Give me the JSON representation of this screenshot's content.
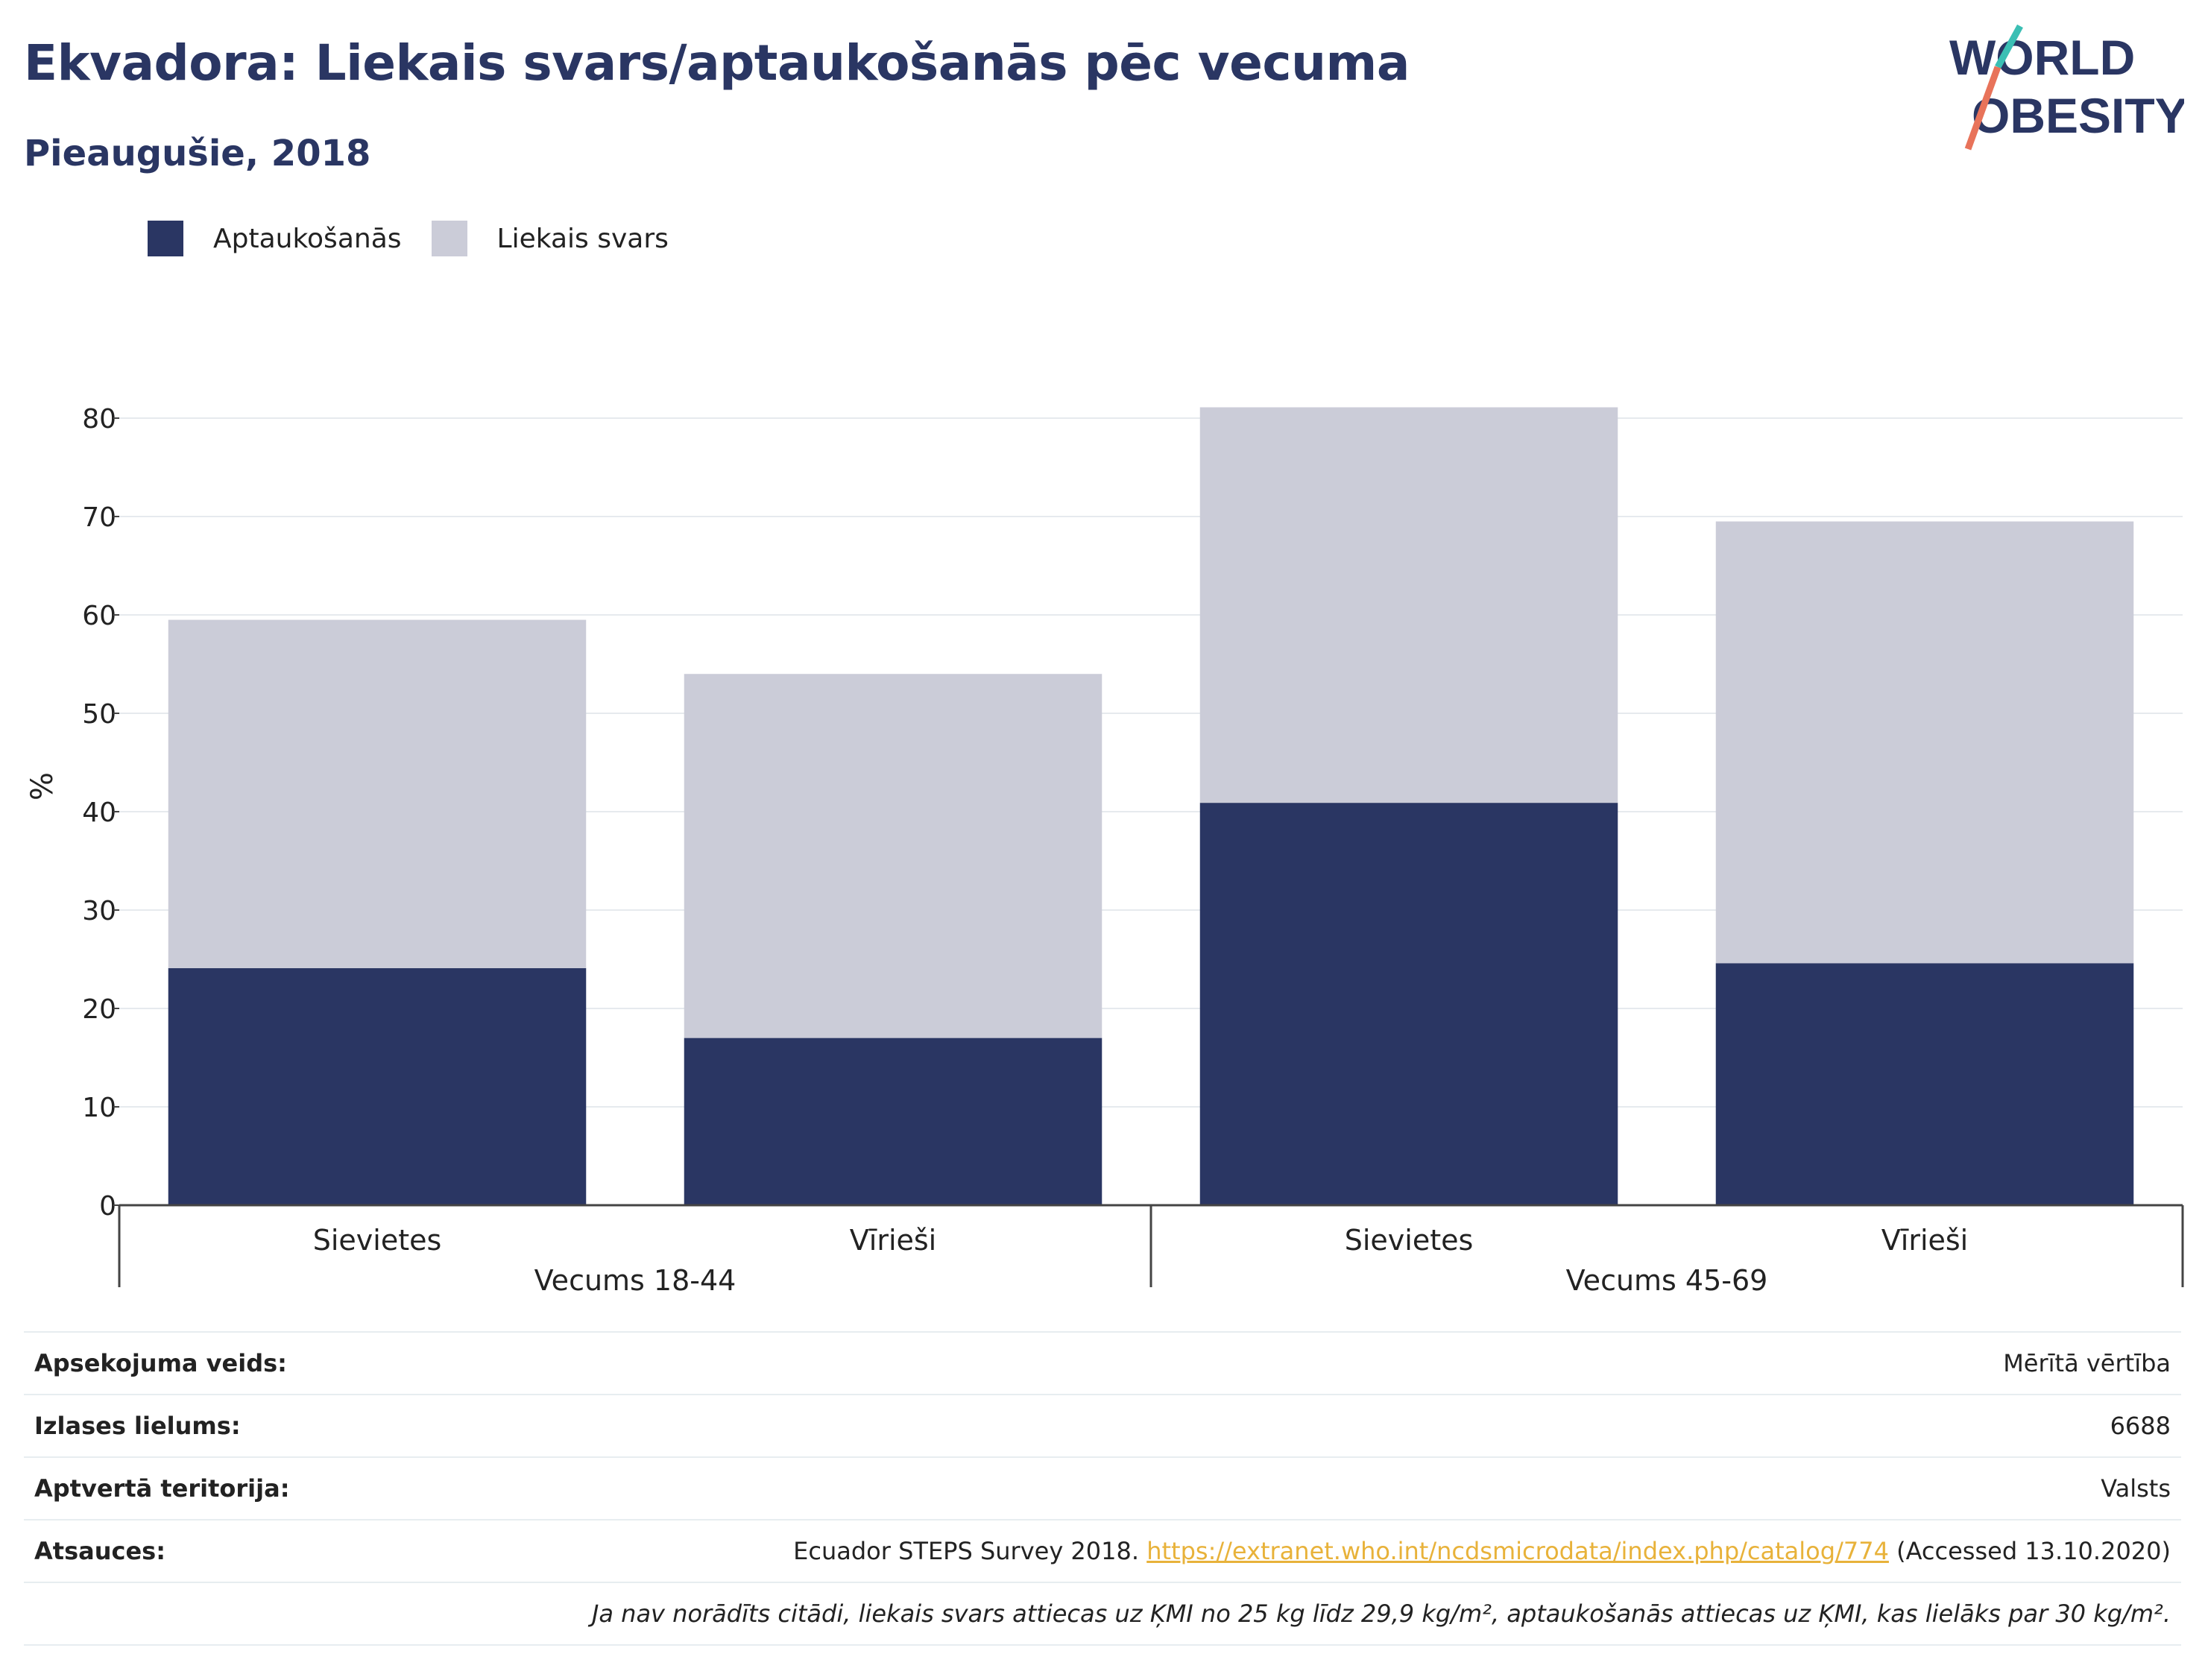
{
  "title": "Ekvadora: Liekais svars/aptaukošanās pēc vecuma",
  "subtitle": "Pieaugušie, 2018",
  "logo": {
    "line1": "WORLD",
    "line2": "OBESITY"
  },
  "colors": {
    "obesity": "#2a3663",
    "overweight": "#cbccd8",
    "title": "#2a3663",
    "link": "#e8b23a"
  },
  "chart_data": {
    "type": "bar",
    "stacked": true,
    "categories": [
      "Sievietes",
      "Vīrieši",
      "Sievietes",
      "Vīrieši"
    ],
    "groups": [
      {
        "label": "Vecums 18-44",
        "categories": [
          0,
          1
        ]
      },
      {
        "label": "Vecums 45-69",
        "categories": [
          2,
          3
        ]
      }
    ],
    "series": [
      {
        "name": "Aptaukošanās",
        "color": "#2a3663",
        "values": [
          24.1,
          17.0,
          40.9,
          24.6
        ]
      },
      {
        "name": "Liekais svars",
        "color": "#cbccd8",
        "values": [
          35.4,
          37.0,
          40.2,
          44.9
        ]
      }
    ],
    "ylabel": "%",
    "ylim": [
      0,
      83
    ],
    "yticks": [
      0,
      10,
      20,
      30,
      40,
      50,
      60,
      70,
      80
    ],
    "grid": true,
    "legend_position": "top-left"
  },
  "table": {
    "survey_type": {
      "label": "Apsekojuma veids:",
      "value": "Mērītā vērtība"
    },
    "sample_size": {
      "label": "Izlases lielums:",
      "value": "6688"
    },
    "coverage": {
      "label": "Aptvertā teritorija:",
      "value": "Valsts"
    },
    "references": {
      "label": "Atsauces:",
      "prefix": "Ecuador STEPS Survey 2018. ",
      "link": "https://extranet.who.int/ncdsmicrodata/index.php/catalog/774",
      "suffix": " (Accessed 13.10.2020)"
    },
    "note": "Ja nav norādīts citādi, liekais svars attiecas uz ĶMI no 25 kg līdz 29,9 kg/m², aptaukošanās attiecas uz ĶMI, kas lielāks par 30 kg/m²."
  }
}
